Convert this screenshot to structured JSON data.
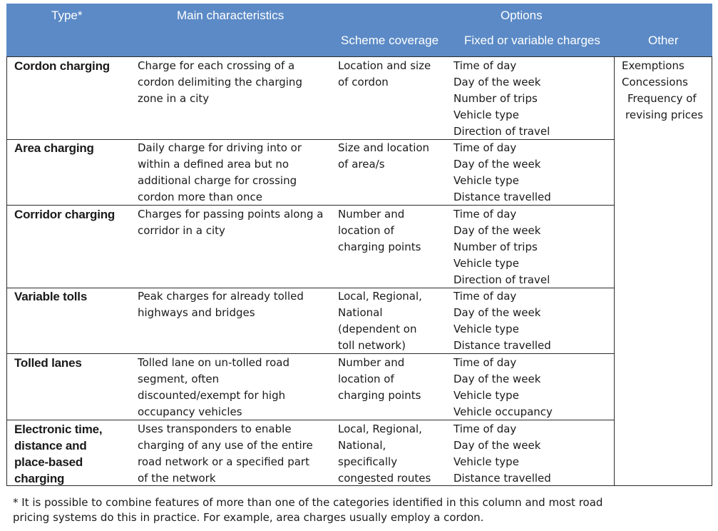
{
  "header": {
    "type": "Type*",
    "main": "Main characteristics",
    "options": "Options",
    "scheme": "Scheme coverage",
    "charges": "Fixed or variable charges",
    "other": "Other"
  },
  "other": [
    "Exemptions",
    "Concessions",
    "Frequency of",
    "revising prices"
  ],
  "rows": [
    {
      "type": [
        "Cordon charging"
      ],
      "main": [
        "Charge for each crossing of a",
        "cordon delimiting the charging",
        "zone in a city"
      ],
      "scheme": [
        "Location and size",
        "of cordon"
      ],
      "charges": [
        "Time of day",
        "Day of the week",
        "Number of trips",
        "Vehicle type",
        "Direction of travel"
      ]
    },
    {
      "type": [
        "Area charging"
      ],
      "main": [
        "Daily charge for driving into or",
        "within a defined area but no",
        "additional charge for crossing",
        "cordon more than once"
      ],
      "scheme": [
        "Size and location",
        "of area/s"
      ],
      "charges": [
        "Time of day",
        "Day of the week",
        "Vehicle type",
        "Distance travelled"
      ]
    },
    {
      "type": [
        "Corridor charging"
      ],
      "main": [
        "Charges for passing points along a",
        "corridor in a city"
      ],
      "scheme": [
        "Number and",
        "location of",
        "charging points"
      ],
      "charges": [
        "Time of day",
        "Day of the week",
        "Number of trips",
        "Vehicle type",
        "Direction of travel"
      ]
    },
    {
      "type": [
        "Variable tolls"
      ],
      "main": [
        "Peak charges for already tolled",
        "highways and bridges"
      ],
      "scheme": [
        "Local, Regional,",
        "National",
        "(dependent on",
        "toll network)"
      ],
      "charges": [
        "Time of day",
        "Day of the week",
        "Vehicle type",
        "Distance travelled"
      ]
    },
    {
      "type": [
        "Tolled lanes"
      ],
      "main": [
        "Tolled lane on un-tolled road",
        "segment, often",
        "discounted/exempt for high",
        "occupancy vehicles"
      ],
      "scheme": [
        "Number and",
        "location of",
        "charging points"
      ],
      "charges": [
        "Time of day",
        "Day of the week",
        "Vehicle type",
        "Vehicle occupancy"
      ]
    },
    {
      "type": [
        "Electronic time,",
        "distance and",
        "place-based",
        "charging"
      ],
      "main": [
        "Uses transponders to enable",
        "charging of any use of the entire",
        "road network or a specified part",
        "of the network"
      ],
      "scheme": [
        "Local, Regional,",
        "National,",
        "specifically",
        "congested routes"
      ],
      "charges": [
        "Time of day",
        "Day of the week",
        "Vehicle type",
        "Distance travelled"
      ]
    }
  ],
  "footnote": [
    "* It is possible to combine features of more than one of the categories identified in this column and most road",
    "pricing systems do this in practice. For example, area charges usually employ a cordon."
  ]
}
